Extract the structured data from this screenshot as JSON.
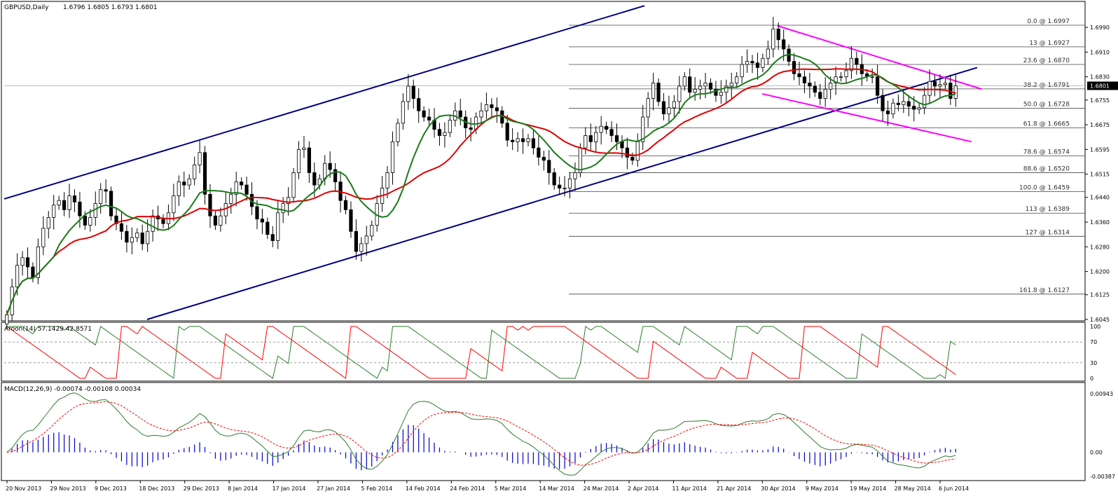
{
  "chart_data": [
    {
      "type": "candlestick",
      "title": "GBPUSD,Daily",
      "ohlc_label": "1.6796 1.6805 1.6793 1.6801",
      "current_price": "1.6801",
      "ylim": [
        1.6045,
        1.7065
      ],
      "y_ticks": [
        "1.6990",
        "1.6910",
        "1.6830",
        "1.6755",
        "1.6675",
        "1.6595",
        "1.6515",
        "1.6440",
        "1.6360",
        "1.6280",
        "1.6200",
        "1.6125",
        "1.6045"
      ],
      "x_ticks": [
        "20 Nov 2013",
        "29 Nov 2013",
        "9 Dec 2013",
        "18 Dec 2013",
        "29 Dec 2013",
        "8 Jan 2014",
        "17 Jan 2014",
        "27 Jan 2014",
        "5 Feb 2014",
        "14 Feb 2014",
        "24 Feb 2014",
        "5 Mar 2014",
        "14 Mar 2014",
        "24 Mar 2014",
        "2 Apr 2014",
        "11 Apr 2014",
        "21 Apr 2014",
        "30 Apr 2014",
        "9 May 2014",
        "19 May 2014",
        "28 May 2014",
        "6 Jun 2014"
      ],
      "fibonacci_levels": [
        {
          "label": "0.0 @ 1.6997",
          "value": 1.6997
        },
        {
          "label": "13 @ 1.6927",
          "value": 1.6927
        },
        {
          "label": "23.6 @ 1.6870",
          "value": 1.687
        },
        {
          "label": "38.2 @ 1.6791",
          "value": 1.6791
        },
        {
          "label": "50.0 @ 1.6728",
          "value": 1.6728
        },
        {
          "label": "61.8 @ 1.6665",
          "value": 1.6665
        },
        {
          "label": "78.6 @ 1.6574",
          "value": 1.6574
        },
        {
          "label": "88.6 @ 1.6520",
          "value": 1.652
        },
        {
          "label": "100.0 @ 1.6459",
          "value": 1.6459
        },
        {
          "label": "113 @ 1.6389",
          "value": 1.6389
        },
        {
          "label": "127 @ 1.6314",
          "value": 1.6314
        },
        {
          "label": "161.8 @ 1.6127",
          "value": 1.6127
        }
      ],
      "closes": [
        1.606,
        1.615,
        1.622,
        1.6245,
        1.6215,
        1.618,
        1.628,
        1.634,
        1.6375,
        1.6415,
        1.643,
        1.64,
        1.6445,
        1.6425,
        1.638,
        1.635,
        1.6375,
        1.642,
        1.6465,
        1.646,
        1.638,
        1.6355,
        1.633,
        1.6295,
        1.631,
        1.6325,
        1.629,
        1.633,
        1.638,
        1.637,
        1.6355,
        1.639,
        1.6445,
        1.649,
        1.648,
        1.65,
        1.6545,
        1.6585,
        1.645,
        1.638,
        1.635,
        1.638,
        1.642,
        1.645,
        1.649,
        1.648,
        1.645,
        1.641,
        1.637,
        1.636,
        1.632,
        1.63,
        1.639,
        1.642,
        1.644,
        1.652,
        1.6595,
        1.66,
        1.652,
        1.648,
        1.65,
        1.655,
        1.653,
        1.649,
        1.643,
        1.64,
        1.633,
        1.6265,
        1.629,
        1.6315,
        1.635,
        1.642,
        1.647,
        1.652,
        1.662,
        1.668,
        1.675,
        1.68,
        1.676,
        1.672,
        1.67,
        1.669,
        1.666,
        1.664,
        1.665,
        1.669,
        1.672,
        1.67,
        1.6665,
        1.666,
        1.67,
        1.672,
        1.674,
        1.673,
        1.672,
        1.668,
        1.6625,
        1.662,
        1.663,
        1.662,
        1.663,
        1.66,
        1.657,
        1.656,
        1.652,
        1.648,
        1.647,
        1.647,
        1.65,
        1.652,
        1.66,
        1.664,
        1.662,
        1.665,
        1.667,
        1.666,
        1.664,
        1.662,
        1.66,
        1.657,
        1.656,
        1.662,
        1.67,
        1.676,
        1.681,
        1.675,
        1.671,
        1.673,
        1.675,
        1.68,
        1.683,
        1.678,
        1.679,
        1.68,
        1.681,
        1.679,
        1.677,
        1.678,
        1.68,
        1.681,
        1.683,
        1.687,
        1.688,
        1.6875,
        1.686,
        1.689,
        1.692,
        1.6985,
        1.695,
        1.692,
        1.688,
        1.684,
        1.683,
        1.681,
        1.68,
        1.678,
        1.676,
        1.679,
        1.681,
        1.683,
        1.683,
        1.685,
        1.689,
        1.687,
        1.684,
        1.683,
        1.683,
        1.677,
        1.672,
        1.671,
        1.6745,
        1.674,
        1.675,
        1.6735,
        1.6725,
        1.673,
        1.677,
        1.6815,
        1.68,
        1.6805,
        1.681,
        1.676,
        1.6801
      ]
    },
    {
      "type": "line",
      "title": "Aroon(14) 57.1429 42.8571",
      "y_ticks": [
        "100",
        "70",
        "30",
        "0"
      ],
      "ylim": [
        0,
        100
      ],
      "reference_levels": [
        70,
        30
      ],
      "colors": {
        "up": "#2e7d2e",
        "down": "#ff0000"
      }
    },
    {
      "type": "line",
      "title": "MACD(12,26,9) -0.00074 -0.00108 0.00034",
      "y_ticks": [
        "0.00943",
        "0.00",
        "-0.00387"
      ],
      "ylim": [
        -0.00387,
        0.00943
      ],
      "colors": {
        "macd": "#2e7d2e",
        "signal": "#ff0000",
        "histogram": "#0000cc"
      }
    }
  ]
}
